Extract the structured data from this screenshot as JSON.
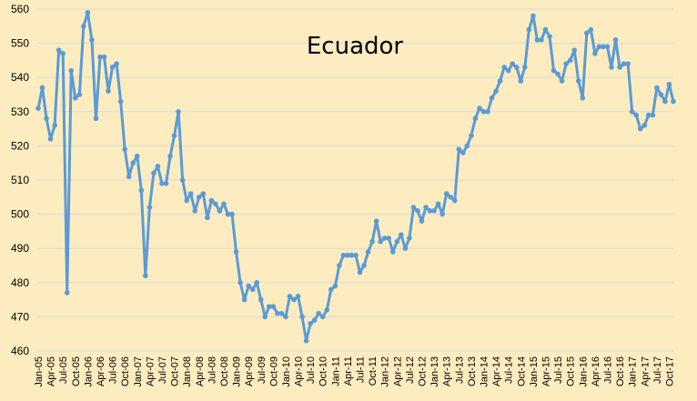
{
  "chart_data": {
    "type": "line",
    "title": "Ecuador",
    "xlabel": "",
    "ylabel": "",
    "ylim": [
      460,
      560
    ],
    "y_ticks": [
      460,
      470,
      480,
      490,
      500,
      510,
      520,
      530,
      540,
      550,
      560
    ],
    "grid": "horizontal",
    "legend": "none",
    "line_color": "#5b9bd5",
    "background_color": "#fdecbf",
    "grid_color": "#d9d9d9",
    "x_tick_labels": [
      "Jan-05",
      "Apr-05",
      "Jul-05",
      "Oct-05",
      "Jan-06",
      "Apr-06",
      "Jul-06",
      "Oct-06",
      "Jan-07",
      "Apr-07",
      "Jul-07",
      "Oct-07",
      "Jan-08",
      "Apr-08",
      "Jul-08",
      "Oct-08",
      "Jan-09",
      "Apr-09",
      "Jul-09",
      "Oct-09",
      "Jan-10",
      "Apr-10",
      "Jul-10",
      "Oct-10",
      "Jan-11",
      "Apr-11",
      "Jul-11",
      "Oct-11",
      "Jan-12",
      "Apr-12",
      "Jul-12",
      "Oct-12",
      "Jan-13",
      "Apr-13",
      "Jul-13",
      "Oct-13",
      "Jan-14",
      "Apr-14",
      "Jul-14",
      "Oct-14",
      "Jan-15",
      "Apr-15",
      "Jul-15",
      "Oct-15",
      "Jan-16",
      "Apr-16",
      "Jul-16",
      "Oct-16",
      "Jan-17",
      "Apr-17",
      "Jul-17",
      "Oct-17"
    ],
    "series": [
      {
        "start": "Jan-05",
        "frequency": "monthly",
        "values": [
          531,
          537,
          528,
          522,
          526,
          548,
          547,
          477,
          542,
          534,
          535,
          555,
          559,
          551,
          528,
          546,
          546,
          536,
          543,
          544,
          533,
          519,
          511,
          515,
          517,
          507,
          482,
          502,
          512,
          514,
          509,
          509,
          517,
          523,
          530,
          510,
          504,
          506,
          501,
          505,
          506,
          499,
          504,
          503,
          501,
          503,
          500,
          500,
          489,
          480,
          475,
          479,
          478,
          480,
          475,
          470,
          473,
          473,
          471,
          471,
          470,
          476,
          475,
          476,
          470,
          463,
          468,
          469,
          471,
          470,
          472,
          478,
          479,
          485,
          488,
          488,
          488,
          488,
          483,
          485,
          489,
          492,
          498,
          492,
          493,
          493,
          489,
          492,
          494,
          490,
          493,
          502,
          501,
          498,
          502,
          501,
          501,
          503,
          500,
          506,
          505,
          504,
          519,
          518,
          520,
          523,
          528,
          531,
          530,
          530,
          534,
          536,
          539,
          543,
          542,
          544,
          543,
          539,
          543,
          554,
          558,
          551,
          551,
          554,
          552,
          542,
          541,
          539,
          544,
          545,
          548,
          539,
          534,
          553,
          554,
          547,
          549,
          549,
          549,
          543,
          551,
          543,
          544,
          544,
          530,
          529,
          525,
          526,
          529,
          529,
          537,
          535,
          533,
          538,
          533
        ]
      }
    ]
  }
}
